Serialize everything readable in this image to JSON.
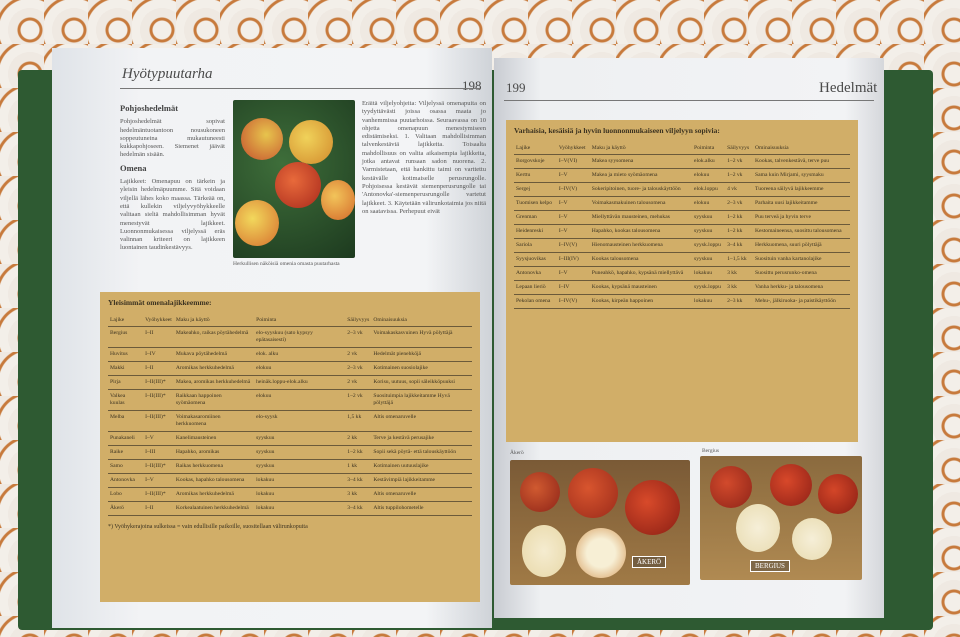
{
  "left_page": {
    "section": "Hyötypuutarha",
    "page_number": "198",
    "heading": "Pohjoshedelmät",
    "intro": "Pohjoshedelmät sopivat hedelmäntuotantoon nousukoneen soppeutuneina mukautuneesti kukkapohjoseen. Siemenet jäävät hedelmän sisään.",
    "subheading": "Omena",
    "body": "Lajikkeet: Omenapuu on tärkein ja yleisin hedelmäpuumme. Sitä voidaan viljellä lähes koko maassa. Tärkeää on, että kullekin viljelyvyöhykkeelle valitaan sieltä mahdollisimman hyvät menestyvät lajikkeet. Luonnonmukaisessa viljelyssä eräs valinnan kriteeri on lajikkeen luontainen taudinkestävyys.",
    "caption": "Herkullisen näköisiä omenia omasta puutarhasta",
    "right_col": "Eräitä viljelyohjeita: Viljelyssä omenapuita on tyydyttävästi joissa osassa maata jo vanhemmissa puutarhoissa. Seuraavassa on 10 ohjetta omenapuun menestymiseen edistämiseksi. 1. Valitaan mahdollisimman talvenkestäviä lajikkeita. Toisaalta mahdollisuus on valita aikaisempia lajikkeita, jotka antavat runsaan sadon nuorena. 2. Varmistetaan, että hankittu taimi on varttettu kestävälle kotimaiselle perusrungolle. Pohjoisessa kestävät siemenperusrungolle tai 'Antonovka'-siemenperusrungolle vartetut lajikkeet. 3. Käytetään välirunkotaimia jos niitä on saatavissa. Perhepuut eivät",
    "table": {
      "title": "Yleisimmät omenalajikkeemme:",
      "headers": [
        "Lajike",
        "Vyöhykkeet",
        "Maku ja käyttö",
        "Poiminta",
        "Säilyvyys",
        "Ominaisuuksia"
      ],
      "rows": [
        [
          "Bergius",
          "I–II",
          "Makeahko, raikas pöytähedelmä",
          "elo-syyskuu (sato kypsyy epätasaisesti)",
          "2–3 vk",
          "Voimakaskasvuinen Hyvä pölyttäjä"
        ],
        [
          "Huvitus",
          "I–IV",
          "Mukava pöytähedelmä",
          "elok. alku",
          "2 vk",
          "Hedelmät pienehköjä"
        ],
        [
          "Makki",
          "I–II",
          "Aromikas herkkuhedelmä",
          "elokuu",
          "2–3 vk",
          "Kotimainen suosiolajike"
        ],
        [
          "Pirja",
          "I–II(III)*",
          "Makea, aromikas herkkuhedelmä",
          "heinäk.loppu-elok.alku",
          "2 vk",
          "Korisu, uutuus, sopii säleikköpuuksi"
        ],
        [
          "Valkea kuulas",
          "I–II(III)*",
          "Raikkaan happoinen syömäomena",
          "elokuu",
          "1–2 vk",
          "Suosituimpia lajikkeitamme Hyvä pölyttäjä"
        ],
        [
          "Melba",
          "I–II(III)*",
          "Voimakasaromiinen herkkuomena",
          "elo-syysk",
          "1,5 kk",
          "Altis omenaruvelle"
        ],
        [
          "Punakaneli",
          "I–V",
          "Kanelimausteinen",
          "syyskuu",
          "2 kk",
          "Terve ja kestävä perusajike"
        ],
        [
          "Raike",
          "I–III",
          "Hapahko, aromikas",
          "syyskuu",
          "1–2 kk",
          "Sopii sekä pöytä- että talouskäyttöön"
        ],
        [
          "Samo",
          "I–II(III)*",
          "Raikas herkkuomena",
          "syyskuu",
          "1 kk",
          "Kotimainen uutuuslajike"
        ],
        [
          "Antonovka",
          "I–V",
          "Kookas, hapahko talousomena",
          "lokakuu",
          "3–4 kk",
          "Kestävimpiä lajikkeitamme"
        ],
        [
          "Lobo",
          "I–II(III)*",
          "Aromikas herkkuhedelmä",
          "lokakuu",
          "3 kk",
          "Altis omenaruvelle"
        ],
        [
          "Åkerö",
          "I–II",
          "Korkealaatuinen herkkuhedelmä",
          "lokakuu",
          "3–4 kk",
          "Altis tuppilohometelle"
        ]
      ],
      "footnote": "*) Vyöhykerajoina sulkeissa = vain edullisille paikoille, suositellaan välirunkopuita"
    }
  },
  "right_page": {
    "page_number": "199",
    "section": "Hedelmät",
    "table": {
      "title": "Varhaisia, kesäisiä ja hyvin luonnonmukaiseen viljelyyn sopivia:",
      "headers": [
        "Lajike",
        "Vyöhykkeet",
        "Maku ja käyttö",
        "Poiminta",
        "Säilyvyys",
        "Ominaisuuksia"
      ],
      "rows": [
        [
          "Borgovskoje",
          "I–V(VI)",
          "Makea syysomena",
          "elok.alku",
          "1–2 vk",
          "Kookas, talvenkestävä, terve puu"
        ],
        [
          "Kerttu",
          "I–V",
          "Makea ja mieto syömäomena",
          "elokuu",
          "1–2 vk",
          "Sama kuin Mirjami, syysmaku"
        ],
        [
          "Sergej",
          "I–IV(V)",
          "Sokeripitoinen, tuore- ja talouskäyttöön",
          "elok.loppu",
          "4 vk",
          "Tuoreena säilyvä lajikkeemme"
        ],
        [
          "Tuomisen kelpo",
          "I–V",
          "Voimakasmakuinen talousomena",
          "elokuu",
          "2–3 vk",
          "Parhaita uusi lajikkeitamme"
        ],
        [
          "Grenman",
          "I–V",
          "Miellyttävän mausteinen, mehukas",
          "syyskuu",
          "1–2 kk",
          "Puu terveä ja hyvin terve"
        ],
        [
          "Heidenreski",
          "I–V",
          "Hapahko, kookas talousomena",
          "syyskuu",
          "1–2 kk",
          "Kestomaineensa, suosittu talousomena"
        ],
        [
          "Sariola",
          "I–IV(V)",
          "Hienomausteinen herkkuomena",
          "syysk.loppu",
          "3–4 kk",
          "Herkkuomena, suuri pölyttäjä"
        ],
        [
          "Syysjuovikas",
          "I–III(IV)",
          "Kookas talousomena",
          "syyskuu",
          "1–1,5 kk",
          "Suosituin vanha kartanolajike"
        ],
        [
          "Antonovka",
          "I–V",
          "Puneahkö, hapahko, kypsänä miellyttävä",
          "lokakuu",
          "3 kk",
          "Suosittu perusrunko-omena"
        ],
        [
          "Lepaan lieriö",
          "I–IV",
          "Kookas, kypsänä mausteinen",
          "syysk.loppu",
          "3 kk",
          "Vanha herkku- ja talousomena"
        ],
        [
          "Pekolan omena",
          "I–IV(V)",
          "Kookas, kirpeän happoinen",
          "lokakuu",
          "2–3 kk",
          "Mehu-, jälkiruoka- ja paistikäyttöön"
        ]
      ]
    },
    "photos": [
      {
        "caption": "Åkerö",
        "tag": "ÅKERÖ"
      },
      {
        "caption": "Bergius",
        "tag": "BERGIUS"
      }
    ]
  }
}
